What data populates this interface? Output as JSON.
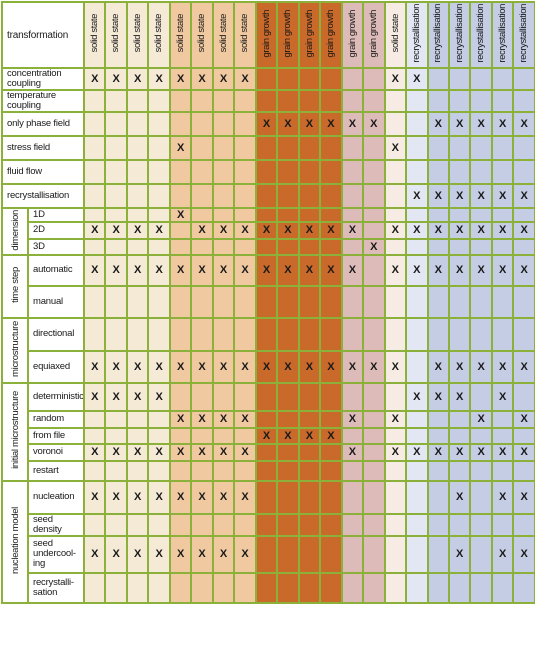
{
  "header": {
    "corner": "transformation",
    "columns": [
      {
        "label": "solid state",
        "color": "#f5ead6"
      },
      {
        "label": "solid state",
        "color": "#f5ead6"
      },
      {
        "label": "solid state",
        "color": "#f5ead6"
      },
      {
        "label": "solid state",
        "color": "#f5ead6"
      },
      {
        "label": "solid state",
        "color": "#f0c9a1"
      },
      {
        "label": "solid state",
        "color": "#f0c9a1"
      },
      {
        "label": "solid state",
        "color": "#f0c9a1"
      },
      {
        "label": "solid state",
        "color": "#f0c9a1"
      },
      {
        "label": "grain growth",
        "color": "#c9692a"
      },
      {
        "label": "grain growth",
        "color": "#c9692a"
      },
      {
        "label": "grain growth",
        "color": "#c9692a"
      },
      {
        "label": "grain growth",
        "color": "#c9692a"
      },
      {
        "label": "grain growth",
        "color": "#ddbbb9"
      },
      {
        "label": "grain growth",
        "color": "#ddbbb9"
      },
      {
        "label": "solid state",
        "color": "#f6ece3"
      },
      {
        "label": "recrystallisation",
        "color": "#e3e7f3"
      },
      {
        "label": "recrystallisation",
        "color": "#c5cde4"
      },
      {
        "label": "recrystallisation",
        "color": "#c5cde4"
      },
      {
        "label": "recrystallisation",
        "color": "#c5cde4"
      },
      {
        "label": "recrystallisation",
        "color": "#c5cde4"
      },
      {
        "label": "recrystallisation",
        "color": "#c5cde4"
      }
    ]
  },
  "mark": "X",
  "groups": {
    "dimension": "dimension",
    "time_step": "time step",
    "microstructure": "microstructure",
    "initial_microstructure": "initial microstructure",
    "nucleation_model": "nucleation model"
  },
  "rows": [
    {
      "label": "concentration coupling",
      "cells": [
        1,
        1,
        1,
        1,
        1,
        1,
        1,
        1,
        0,
        0,
        0,
        0,
        0,
        0,
        1,
        1,
        0,
        0,
        0,
        0,
        0
      ]
    },
    {
      "label": "temperature coupling",
      "cells": [
        0,
        0,
        0,
        0,
        0,
        0,
        0,
        0,
        0,
        0,
        0,
        0,
        0,
        0,
        0,
        0,
        0,
        0,
        0,
        0,
        0
      ]
    },
    {
      "label": "only phase field",
      "cells": [
        0,
        0,
        0,
        0,
        0,
        0,
        0,
        0,
        1,
        1,
        1,
        1,
        1,
        1,
        0,
        0,
        1,
        1,
        1,
        1,
        1
      ]
    },
    {
      "label": "stress field",
      "cells": [
        0,
        0,
        0,
        0,
        1,
        0,
        0,
        0,
        0,
        0,
        0,
        0,
        0,
        0,
        1,
        0,
        0,
        0,
        0,
        0,
        0
      ]
    },
    {
      "label": "fluid flow",
      "cells": [
        0,
        0,
        0,
        0,
        0,
        0,
        0,
        0,
        0,
        0,
        0,
        0,
        0,
        0,
        0,
        0,
        0,
        0,
        0,
        0,
        0
      ]
    },
    {
      "label": "recrystallisation",
      "cells": [
        0,
        0,
        0,
        0,
        0,
        0,
        0,
        0,
        0,
        0,
        0,
        0,
        0,
        0,
        0,
        1,
        1,
        1,
        1,
        1,
        1
      ]
    },
    {
      "label": "1D",
      "cells": [
        0,
        0,
        0,
        0,
        1,
        0,
        0,
        0,
        0,
        0,
        0,
        0,
        0,
        0,
        0,
        0,
        0,
        0,
        0,
        0,
        0
      ]
    },
    {
      "label": "2D",
      "cells": [
        1,
        1,
        1,
        1,
        0,
        1,
        1,
        1,
        1,
        1,
        1,
        1,
        1,
        0,
        1,
        1,
        1,
        1,
        1,
        1,
        1
      ]
    },
    {
      "label": "3D",
      "cells": [
        0,
        0,
        0,
        0,
        0,
        0,
        0,
        0,
        0,
        0,
        0,
        0,
        0,
        1,
        0,
        0,
        0,
        0,
        0,
        0,
        0
      ]
    },
    {
      "label": "automatic",
      "cells": [
        1,
        1,
        1,
        1,
        1,
        1,
        1,
        1,
        1,
        1,
        1,
        1,
        1,
        0,
        1,
        1,
        1,
        1,
        1,
        1,
        1
      ]
    },
    {
      "label": "manual",
      "cells": [
        0,
        0,
        0,
        0,
        0,
        0,
        0,
        0,
        0,
        0,
        0,
        0,
        0,
        0,
        0,
        0,
        0,
        0,
        0,
        0,
        0
      ]
    },
    {
      "label": "directional",
      "cells": [
        0,
        0,
        0,
        0,
        0,
        0,
        0,
        0,
        0,
        0,
        0,
        0,
        0,
        0,
        0,
        0,
        0,
        0,
        0,
        0,
        0
      ]
    },
    {
      "label": "equiaxed",
      "cells": [
        1,
        1,
        1,
        1,
        1,
        1,
        1,
        1,
        1,
        1,
        1,
        1,
        1,
        1,
        1,
        0,
        1,
        1,
        1,
        1,
        1
      ]
    },
    {
      "label": "deterministic",
      "cells": [
        1,
        1,
        1,
        1,
        0,
        0,
        0,
        0,
        0,
        0,
        0,
        0,
        0,
        0,
        0,
        1,
        1,
        1,
        0,
        1,
        0
      ]
    },
    {
      "label": "random",
      "cells": [
        0,
        0,
        0,
        0,
        1,
        1,
        1,
        1,
        0,
        0,
        0,
        0,
        1,
        0,
        1,
        0,
        0,
        0,
        1,
        0,
        1
      ]
    },
    {
      "label": "from file",
      "cells": [
        0,
        0,
        0,
        0,
        0,
        0,
        0,
        0,
        1,
        1,
        1,
        1,
        0,
        0,
        0,
        0,
        0,
        0,
        0,
        0,
        0
      ]
    },
    {
      "label": "voronoi",
      "cells": [
        1,
        1,
        1,
        1,
        1,
        1,
        1,
        1,
        0,
        0,
        0,
        0,
        1,
        0,
        1,
        1,
        1,
        1,
        1,
        1,
        1
      ]
    },
    {
      "label": "restart",
      "cells": [
        0,
        0,
        0,
        0,
        0,
        0,
        0,
        0,
        0,
        0,
        0,
        0,
        0,
        0,
        0,
        0,
        0,
        0,
        0,
        0,
        0
      ]
    },
    {
      "label": "nucleation",
      "cells": [
        1,
        1,
        1,
        1,
        1,
        1,
        1,
        1,
        0,
        0,
        0,
        0,
        0,
        0,
        0,
        0,
        0,
        1,
        0,
        1,
        1
      ]
    },
    {
      "label": "seed density",
      "cells": [
        0,
        0,
        0,
        0,
        0,
        0,
        0,
        0,
        0,
        0,
        0,
        0,
        0,
        0,
        0,
        0,
        0,
        0,
        0,
        0,
        0
      ]
    },
    {
      "label": "seed undercool-ing",
      "cells": [
        1,
        1,
        1,
        1,
        1,
        1,
        1,
        1,
        0,
        0,
        0,
        0,
        0,
        0,
        0,
        0,
        0,
        1,
        0,
        1,
        1
      ]
    },
    {
      "label": "recrystalli-sation",
      "cells": [
        0,
        0,
        0,
        0,
        0,
        0,
        0,
        0,
        0,
        0,
        0,
        0,
        0,
        0,
        0,
        0,
        0,
        0,
        0,
        0,
        0
      ]
    }
  ]
}
